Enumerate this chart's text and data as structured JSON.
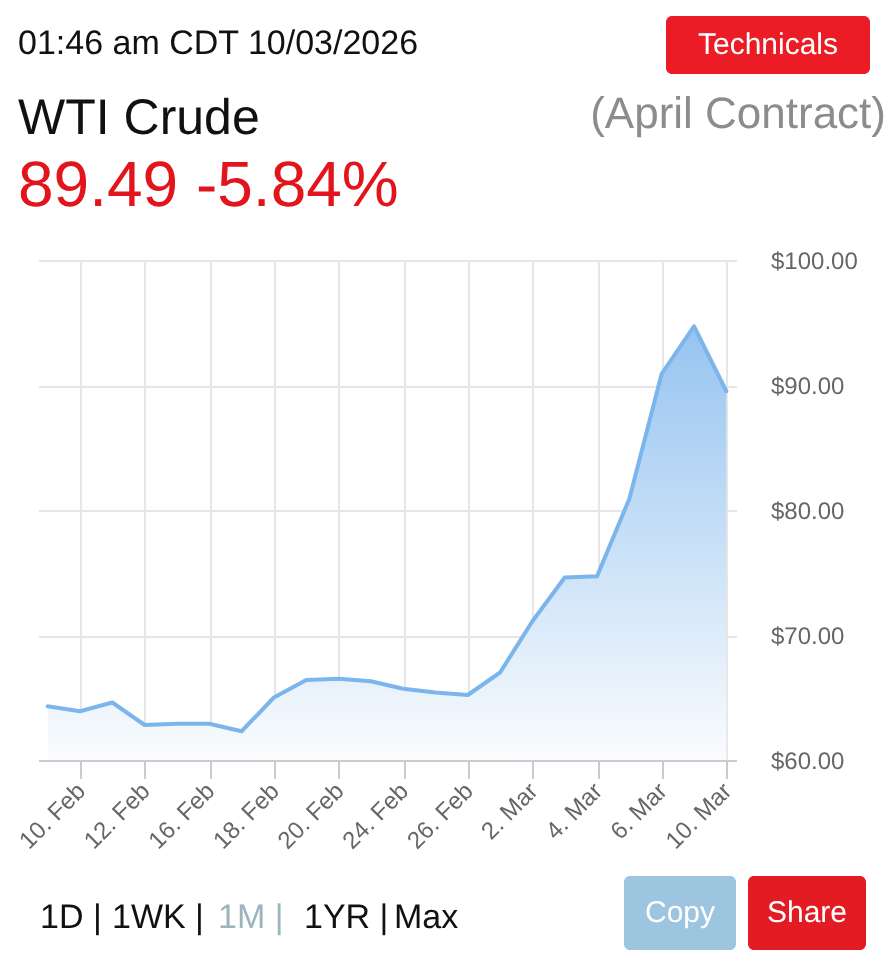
{
  "chart_data": {
    "type": "area",
    "title": "WTI Crude",
    "subtitle": "(April Contract)",
    "annotations": [
      "01:46 am CDT 10/03/2026",
      "89.49 -5.84%",
      "Technicals",
      "1D |",
      "1WK |",
      "1M |",
      "1YR |",
      "Max",
      "Copy",
      "Share"
    ],
    "categories": [
      null,
      "10. Feb",
      null,
      "12. Feb",
      null,
      "16. Feb",
      null,
      "18. Feb",
      null,
      "20. Feb",
      null,
      "24. Feb",
      null,
      "26. Feb",
      null,
      "2. Mar",
      null,
      "4. Mar",
      null,
      "6. Mar",
      null,
      "10. Mar"
    ],
    "series": [
      {
        "color": "#7cb5ec",
        "values": [
          64.3,
          63.9,
          64.6,
          62.8,
          62.9,
          62.9,
          62.3,
          65.0,
          66.4,
          66.5,
          66.3,
          65.7,
          65.4,
          65.2,
          67.0,
          71.1,
          74.6,
          74.7,
          80.9,
          90.9,
          94.7,
          89.5
        ]
      }
    ],
    "ylim": [
      60,
      100
    ],
    "yticks": [
      {
        "value": 60,
        "label": "$60.00"
      },
      {
        "value": 70,
        "label": "$70.00"
      },
      {
        "value": 80,
        "label": "$80.00"
      },
      {
        "value": 90,
        "label": "$90.00"
      },
      {
        "value": 100,
        "label": "$100.00"
      }
    ],
    "grid": true
  }
}
